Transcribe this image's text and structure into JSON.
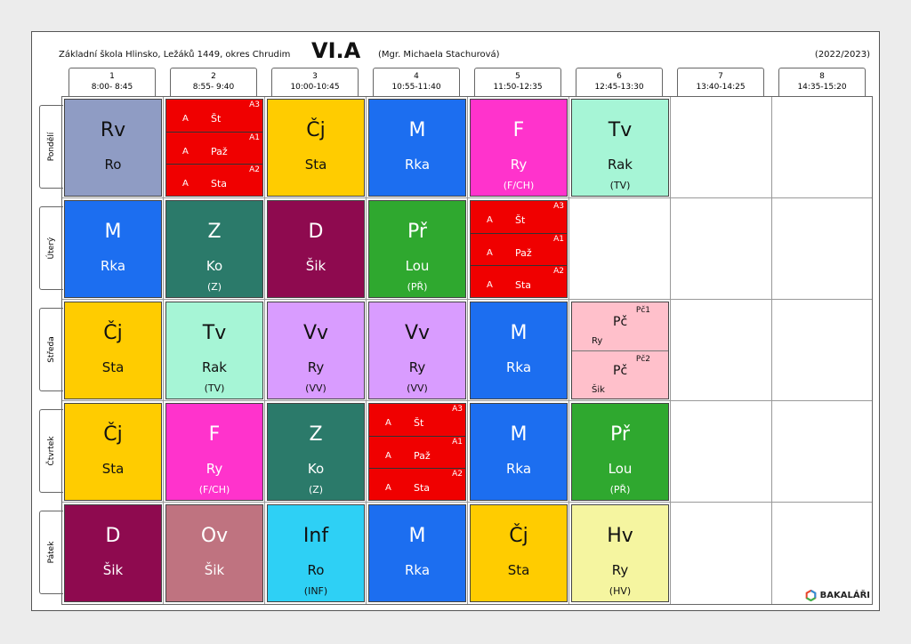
{
  "header": {
    "school": "Základní škola Hlinsko, Ležáků 1449, okres Chrudim",
    "class_name": "VI.A",
    "teacher": "(Mgr. Michaela Stachurová)",
    "year": "(2022/2023)"
  },
  "periods": [
    {
      "num": "1",
      "time": "8:00- 8:45"
    },
    {
      "num": "2",
      "time": "8:55- 9:40"
    },
    {
      "num": "3",
      "time": "10:00-10:45"
    },
    {
      "num": "4",
      "time": "10:55-11:40"
    },
    {
      "num": "5",
      "time": "11:50-12:35"
    },
    {
      "num": "6",
      "time": "12:45-13:30"
    },
    {
      "num": "7",
      "time": "13:40-14:25"
    },
    {
      "num": "8",
      "time": "14:35-15:20"
    }
  ],
  "days": [
    "Pondělí",
    "Úterý",
    "Středa",
    "Čtvrtek",
    "Pátek"
  ],
  "lessons": [
    {
      "day": 0,
      "period": 0,
      "type": "single",
      "subject": "Rv",
      "teacher": "Ro",
      "group": "",
      "color": "#8f9cc4"
    },
    {
      "day": 0,
      "period": 1,
      "type": "split3",
      "color": "#f00000",
      "parts": [
        {
          "tag": "A3",
          "a": "A",
          "subject": "Št"
        },
        {
          "tag": "A1",
          "a": "A",
          "subject": "Paž"
        },
        {
          "tag": "A2",
          "a": "A",
          "subject": "Sta"
        }
      ]
    },
    {
      "day": 0,
      "period": 2,
      "type": "single",
      "subject": "Čj",
      "teacher": "Sta",
      "group": "",
      "color": "#ffcc00"
    },
    {
      "day": 0,
      "period": 3,
      "type": "single",
      "subject": "M",
      "teacher": "Rka",
      "group": "",
      "color": "#1c6ef0"
    },
    {
      "day": 0,
      "period": 4,
      "type": "single",
      "subject": "F",
      "teacher": "Ry",
      "group": "(F/CH)",
      "color": "#ff33cc"
    },
    {
      "day": 0,
      "period": 5,
      "type": "single",
      "subject": "Tv",
      "teacher": "Rak",
      "group": "(TV)",
      "color": "#a6f5d6"
    },
    {
      "day": 1,
      "period": 0,
      "type": "single",
      "subject": "M",
      "teacher": "Rka",
      "group": "",
      "color": "#1c6ef0"
    },
    {
      "day": 1,
      "period": 1,
      "type": "single",
      "subject": "Z",
      "teacher": "Ko",
      "group": "(Z)",
      "color": "#2b7a6a"
    },
    {
      "day": 1,
      "period": 2,
      "type": "single",
      "subject": "D",
      "teacher": "Šik",
      "group": "",
      "color": "#8e0a4f"
    },
    {
      "day": 1,
      "period": 3,
      "type": "single",
      "subject": "Př",
      "teacher": "Lou",
      "group": "(PŘ)",
      "color": "#2fa82f"
    },
    {
      "day": 1,
      "period": 4,
      "type": "split3",
      "color": "#f00000",
      "parts": [
        {
          "tag": "A3",
          "a": "A",
          "subject": "Št"
        },
        {
          "tag": "A1",
          "a": "A",
          "subject": "Paž"
        },
        {
          "tag": "A2",
          "a": "A",
          "subject": "Sta"
        }
      ]
    },
    {
      "day": 2,
      "period": 0,
      "type": "single",
      "subject": "Čj",
      "teacher": "Sta",
      "group": "",
      "color": "#ffcc00"
    },
    {
      "day": 2,
      "period": 1,
      "type": "single",
      "subject": "Tv",
      "teacher": "Rak",
      "group": "(TV)",
      "color": "#a6f5d6"
    },
    {
      "day": 2,
      "period": 2,
      "type": "single",
      "subject": "Vv",
      "teacher": "Ry",
      "group": "(VV)",
      "color": "#d99cff"
    },
    {
      "day": 2,
      "period": 3,
      "type": "single",
      "subject": "Vv",
      "teacher": "Ry",
      "group": "(VV)",
      "color": "#d99cff"
    },
    {
      "day": 2,
      "period": 4,
      "type": "single",
      "subject": "M",
      "teacher": "Rka",
      "group": "",
      "color": "#1c6ef0"
    },
    {
      "day": 2,
      "period": 5,
      "type": "split2",
      "color": "#ffc0cb",
      "parts": [
        {
          "tag": "Pč1",
          "subject": "Pč",
          "teacher": "Ry"
        },
        {
          "tag": "Pč2",
          "subject": "Pč",
          "teacher": "Šik"
        }
      ]
    },
    {
      "day": 3,
      "period": 0,
      "type": "single",
      "subject": "Čj",
      "teacher": "Sta",
      "group": "",
      "color": "#ffcc00"
    },
    {
      "day": 3,
      "period": 1,
      "type": "single",
      "subject": "F",
      "teacher": "Ry",
      "group": "(F/CH)",
      "color": "#ff33cc"
    },
    {
      "day": 3,
      "period": 2,
      "type": "single",
      "subject": "Z",
      "teacher": "Ko",
      "group": "(Z)",
      "color": "#2b7a6a"
    },
    {
      "day": 3,
      "period": 3,
      "type": "split3",
      "color": "#f00000",
      "parts": [
        {
          "tag": "A3",
          "a": "A",
          "subject": "Št"
        },
        {
          "tag": "A1",
          "a": "A",
          "subject": "Paž"
        },
        {
          "tag": "A2",
          "a": "A",
          "subject": "Sta"
        }
      ]
    },
    {
      "day": 3,
      "period": 4,
      "type": "single",
      "subject": "M",
      "teacher": "Rka",
      "group": "",
      "color": "#1c6ef0"
    },
    {
      "day": 3,
      "period": 5,
      "type": "single",
      "subject": "Př",
      "teacher": "Lou",
      "group": "(PŘ)",
      "color": "#2fa82f"
    },
    {
      "day": 4,
      "period": 0,
      "type": "single",
      "subject": "D",
      "teacher": "Šik",
      "group": "",
      "color": "#8e0a4f"
    },
    {
      "day": 4,
      "period": 1,
      "type": "single",
      "subject": "Ov",
      "teacher": "Šik",
      "group": "",
      "color": "#bf7380"
    },
    {
      "day": 4,
      "period": 2,
      "type": "single",
      "subject": "Inf",
      "teacher": "Ro",
      "group": "(INF)",
      "color": "#2ed0f5"
    },
    {
      "day": 4,
      "period": 3,
      "type": "single",
      "subject": "M",
      "teacher": "Rka",
      "group": "",
      "color": "#1c6ef0"
    },
    {
      "day": 4,
      "period": 4,
      "type": "single",
      "subject": "Čj",
      "teacher": "Sta",
      "group": "",
      "color": "#ffcc00"
    },
    {
      "day": 4,
      "period": 5,
      "type": "single",
      "subject": "Hv",
      "teacher": "Ry",
      "group": "(HV)",
      "color": "#f5f5a0"
    }
  ],
  "logo": {
    "text": "BAKALÁŘI",
    "icon": "bakalari-logo-icon"
  }
}
